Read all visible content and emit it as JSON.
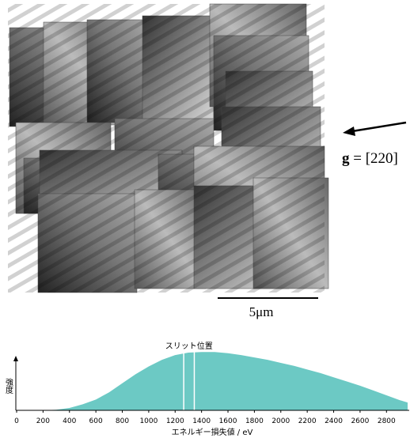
{
  "figure": {
    "g_symbol": "g",
    "g_value": "= [220]",
    "scale_bar": "5μm"
  },
  "chart_data": {
    "type": "area",
    "color": "#6cc9c4",
    "x": [
      0,
      200,
      300,
      400,
      500,
      600,
      700,
      800,
      900,
      1000,
      1100,
      1200,
      1300,
      1400,
      1500,
      1600,
      1700,
      1800,
      1900,
      2000,
      2100,
      2200,
      2300,
      2400,
      2500,
      2600,
      2700,
      2800,
      2900,
      2960
    ],
    "values": [
      0,
      0,
      1,
      4,
      10,
      18,
      30,
      45,
      60,
      73,
      84,
      92,
      96,
      97,
      97,
      95,
      92,
      88,
      84,
      79,
      74,
      68,
      62,
      55,
      48,
      41,
      33,
      25,
      17,
      13
    ],
    "xlim": [
      0,
      2960
    ],
    "ylim": [
      0,
      100
    ],
    "xticks": [
      0,
      200,
      400,
      600,
      800,
      1000,
      1200,
      1400,
      1600,
      1800,
      2000,
      2200,
      2400,
      2600,
      2800
    ],
    "xlabel": "エネルギー損失値 / eV",
    "ylabel": "強度",
    "slit_label": "スリット位置",
    "slit_positions": [
      1265,
      1345
    ]
  }
}
